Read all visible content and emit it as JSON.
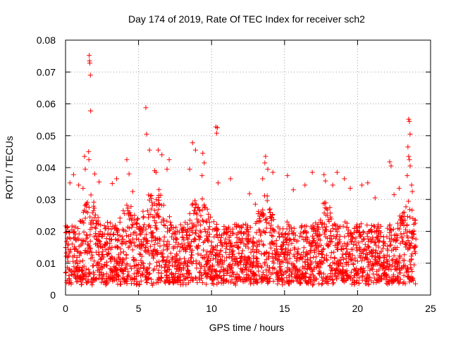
{
  "chart_data": {
    "type": "scatter",
    "title": "Day 174 of 2019, Rate Of TEC Index for receiver sch2",
    "xlabel": "GPS time / hours",
    "ylabel": "ROTI / TECUs",
    "xlim": [
      0,
      25
    ],
    "ylim": [
      0,
      0.08
    ],
    "x_ticks": [
      0,
      5,
      10,
      15,
      20,
      25
    ],
    "y_ticks": [
      0,
      0.01,
      0.02,
      0.03,
      0.04,
      0.05,
      0.06,
      0.07,
      0.08
    ],
    "x_tick_labels": [
      "0",
      "5",
      "10",
      "15",
      "20",
      "25"
    ],
    "y_tick_labels": [
      "0",
      "0.01",
      "0.02",
      "0.03",
      "0.04",
      "0.05",
      "0.06",
      "0.07",
      "0.08"
    ],
    "grid": true,
    "marker": "+",
    "marker_color": "#ff0000",
    "series": [
      {
        "name": "ROTI",
        "points": [
          [
            1.62,
            0.0752
          ],
          [
            1.64,
            0.0735
          ],
          [
            1.66,
            0.0728
          ],
          [
            1.7,
            0.069
          ],
          [
            1.72,
            0.0578
          ],
          [
            1.58,
            0.045
          ],
          [
            1.3,
            0.0435
          ],
          [
            1.6,
            0.0425
          ],
          [
            1.35,
            0.0395
          ],
          [
            0.3,
            0.0352
          ],
          [
            0.55,
            0.0378
          ],
          [
            0.9,
            0.0345
          ],
          [
            1.2,
            0.0335
          ],
          [
            2.0,
            0.038
          ],
          [
            2.3,
            0.0355
          ],
          [
            4.2,
            0.0425
          ],
          [
            4.35,
            0.038
          ],
          [
            3.5,
            0.0365
          ],
          [
            3.2,
            0.035
          ],
          [
            4.6,
            0.0325
          ],
          [
            5.5,
            0.0588
          ],
          [
            5.55,
            0.0505
          ],
          [
            5.75,
            0.0455
          ],
          [
            6.35,
            0.0455
          ],
          [
            6.6,
            0.044
          ],
          [
            6.1,
            0.039
          ],
          [
            6.2,
            0.0385
          ],
          [
            7.1,
            0.0425
          ],
          [
            6.95,
            0.0395
          ],
          [
            8.7,
            0.0478
          ],
          [
            8.9,
            0.0455
          ],
          [
            8.5,
            0.0395
          ],
          [
            9.4,
            0.0445
          ],
          [
            9.5,
            0.0415
          ],
          [
            9.35,
            0.0375
          ],
          [
            10.3,
            0.0528
          ],
          [
            10.4,
            0.0525
          ],
          [
            10.35,
            0.0508
          ],
          [
            10.45,
            0.0352
          ],
          [
            11.3,
            0.0365
          ],
          [
            12.6,
            0.0318
          ],
          [
            13.0,
            0.0285
          ],
          [
            13.7,
            0.0435
          ],
          [
            13.65,
            0.0415
          ],
          [
            13.85,
            0.0395
          ],
          [
            14.2,
            0.0385
          ],
          [
            13.5,
            0.0365
          ],
          [
            15.2,
            0.0375
          ],
          [
            15.6,
            0.033
          ],
          [
            16.4,
            0.0345
          ],
          [
            16.9,
            0.0385
          ],
          [
            17.7,
            0.0378
          ],
          [
            17.8,
            0.0358
          ],
          [
            18.3,
            0.0345
          ],
          [
            18.6,
            0.0385
          ],
          [
            19.1,
            0.0365
          ],
          [
            19.5,
            0.0335
          ],
          [
            20.3,
            0.0345
          ],
          [
            20.7,
            0.0352
          ],
          [
            21.2,
            0.0305
          ],
          [
            22.2,
            0.0418
          ],
          [
            22.3,
            0.0405
          ],
          [
            22.5,
            0.0315
          ],
          [
            22.85,
            0.0335
          ],
          [
            23.5,
            0.0552
          ],
          [
            23.55,
            0.0545
          ],
          [
            23.6,
            0.0505
          ],
          [
            23.45,
            0.0465
          ],
          [
            23.5,
            0.0435
          ],
          [
            23.55,
            0.0425
          ],
          [
            23.6,
            0.0405
          ],
          [
            23.4,
            0.0375
          ],
          [
            23.7,
            0.0345
          ],
          [
            23.75,
            0.0325
          ]
        ]
      }
    ],
    "dense_band": {
      "x_range": [
        0,
        24
      ],
      "y_floor": 0.004,
      "y_typical_top": 0.022,
      "peaks": [
        {
          "x": 1.6,
          "top": 0.034
        },
        {
          "x": 4.3,
          "top": 0.03
        },
        {
          "x": 5.8,
          "top": 0.033
        },
        {
          "x": 6.5,
          "top": 0.034
        },
        {
          "x": 8.8,
          "top": 0.03
        },
        {
          "x": 9.4,
          "top": 0.032
        },
        {
          "x": 13.7,
          "top": 0.032
        },
        {
          "x": 17.8,
          "top": 0.03
        },
        {
          "x": 23.5,
          "top": 0.03
        }
      ]
    }
  }
}
